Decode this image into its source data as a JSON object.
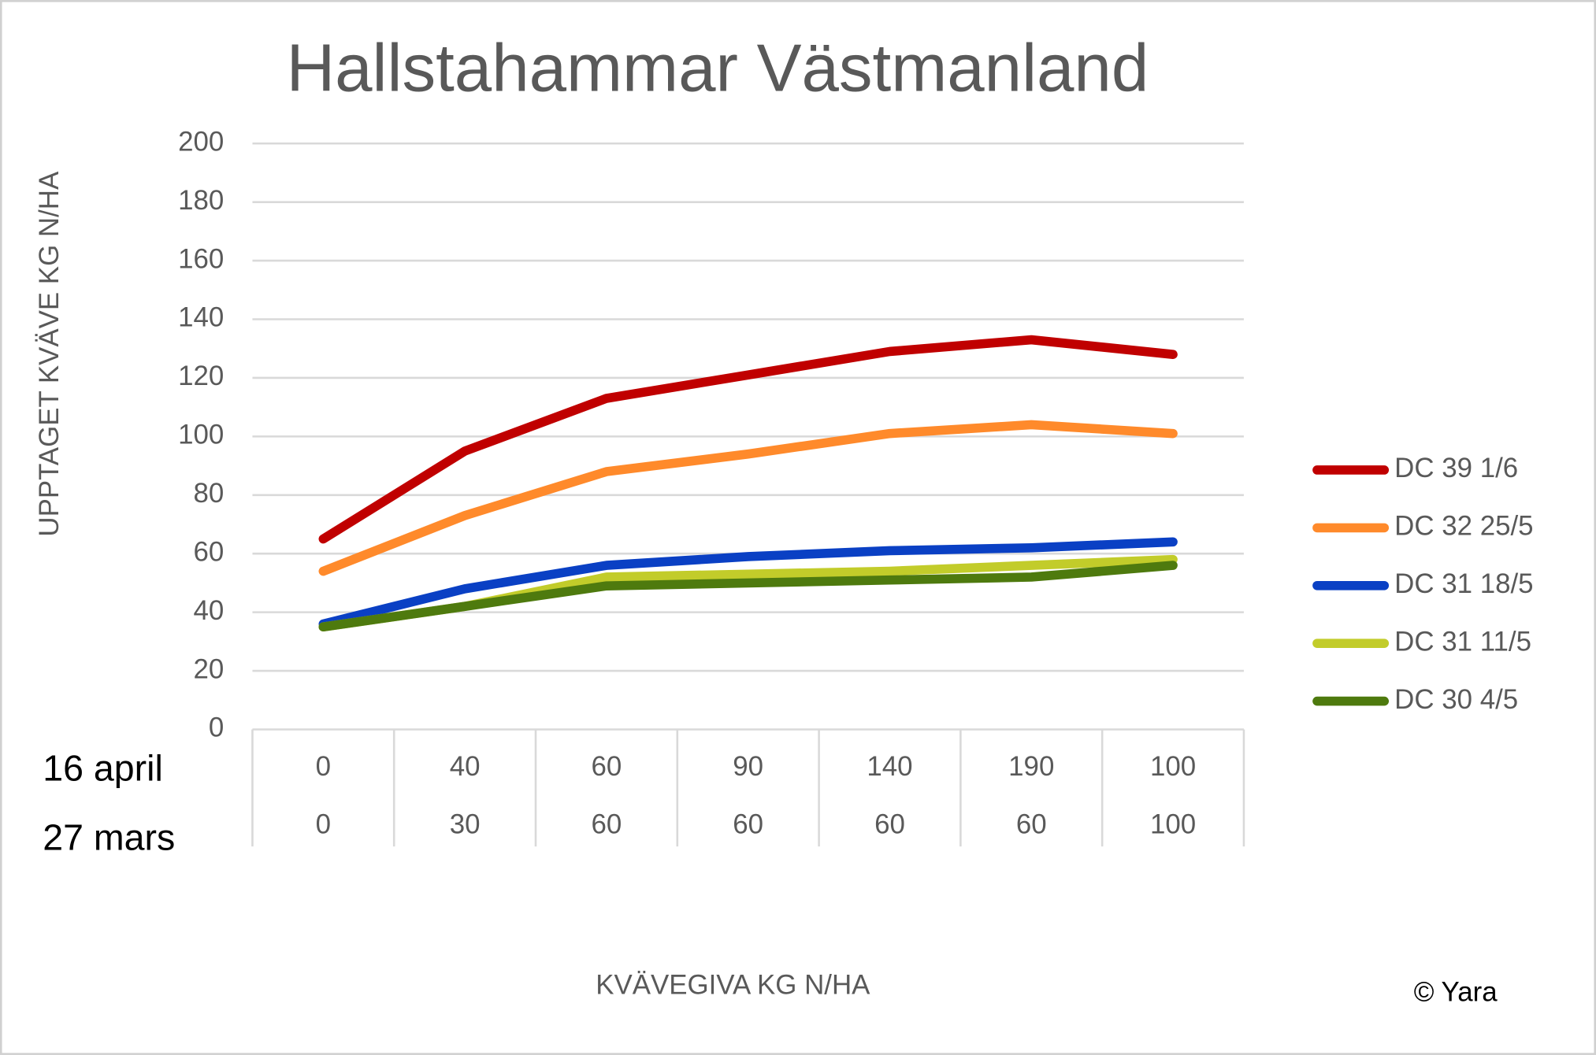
{
  "chart_data": {
    "type": "line",
    "title": "Hallstahammar Västmanland",
    "y_label": "UPPTAGET KVÄVE KG N/HA",
    "x_label": "KVÄVEGIVA  KG N/HA",
    "credit": "© Yara",
    "category_rows": [
      {
        "label": "16 april",
        "categories": [
          "0",
          "40",
          "60",
          "90",
          "140",
          "190",
          "100"
        ]
      },
      {
        "label": "27 mars",
        "categories": [
          "0",
          "30",
          "60",
          "60",
          "60",
          "60",
          "100"
        ]
      }
    ],
    "ylim": [
      0,
      200
    ],
    "yticks": [
      0,
      20,
      40,
      60,
      80,
      100,
      120,
      140,
      160,
      180,
      200
    ],
    "grid": true,
    "legend": "right",
    "series": [
      {
        "name": "DC 39 1/6",
        "color": "#c00000",
        "values": [
          65,
          95,
          113,
          121,
          129,
          133,
          128
        ]
      },
      {
        "name": "DC 32 25/5",
        "color": "#ff8a2b",
        "values": [
          54,
          73,
          88,
          94,
          101,
          104,
          101
        ]
      },
      {
        "name": "DC 31 18/5",
        "color": "#0a40c4",
        "values": [
          36,
          48,
          56,
          59,
          61,
          62,
          64
        ]
      },
      {
        "name": "DC 31 11/5",
        "color": "#c2cc2a",
        "values": [
          35,
          42,
          52,
          53,
          54,
          56,
          58
        ]
      },
      {
        "name": "DC 30 4/5",
        "color": "#4e7a0e",
        "values": [
          35,
          42,
          49,
          50,
          51,
          52,
          56
        ]
      }
    ]
  }
}
